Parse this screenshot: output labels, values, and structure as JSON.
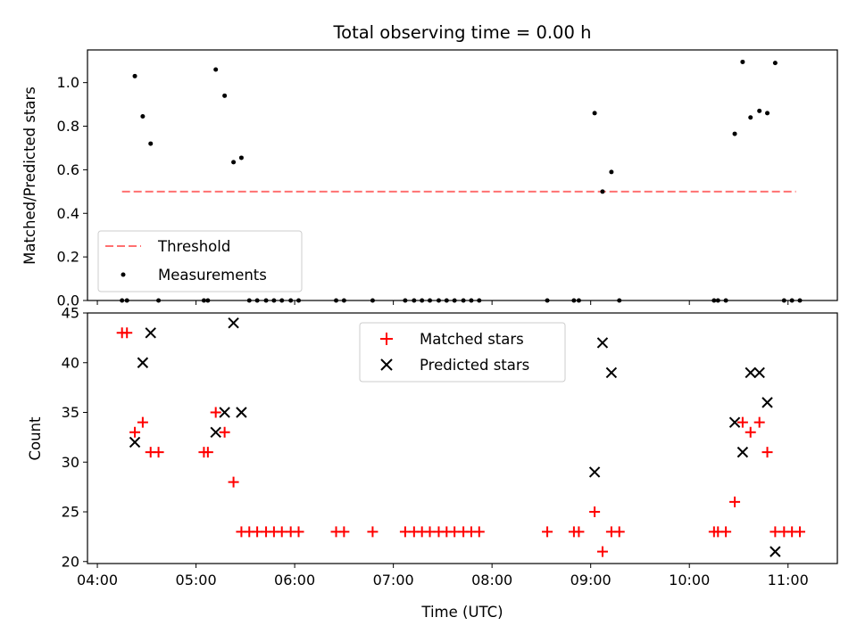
{
  "title": "Total observing time = 0.00 h",
  "colors": {
    "threshold": "#ff7070",
    "measurement": "#000000",
    "matched": "#ff0000",
    "predicted": "#000000"
  },
  "chart_data": [
    {
      "type": "scatter",
      "panel": "top",
      "title": "Total observing time = 0.00 h",
      "xlabel": "",
      "ylabel": "Matched/Predicted stars",
      "xlim": [
        3.9,
        11.5
      ],
      "ylim": [
        0.0,
        1.15
      ],
      "yticks": [
        0.0,
        0.2,
        0.4,
        0.6,
        0.8,
        1.0
      ],
      "ytick_labels": [
        "0.0",
        "0.2",
        "0.4",
        "0.6",
        "0.8",
        "1.0"
      ],
      "legend_position": "lower-left",
      "threshold": {
        "name": "Threshold",
        "value": 0.5,
        "x_range": [
          4.25,
          11.08
        ],
        "style": "dashed"
      },
      "series": [
        {
          "name": "Measurements",
          "marker": "dot",
          "points": [
            [
              4.25,
              0.0
            ],
            [
              4.3,
              0.0
            ],
            [
              4.38,
              1.03
            ],
            [
              4.46,
              0.845
            ],
            [
              4.54,
              0.72
            ],
            [
              4.62,
              0.0
            ],
            [
              5.08,
              0.0
            ],
            [
              5.12,
              0.0
            ],
            [
              5.2,
              1.06
            ],
            [
              5.29,
              0.94
            ],
            [
              5.38,
              0.635
            ],
            [
              5.46,
              0.655
            ],
            [
              5.54,
              0.0
            ],
            [
              5.62,
              0.0
            ],
            [
              5.71,
              0.0
            ],
            [
              5.79,
              0.0
            ],
            [
              5.87,
              0.0
            ],
            [
              5.96,
              0.0
            ],
            [
              6.04,
              0.0
            ],
            [
              6.42,
              0.0
            ],
            [
              6.5,
              0.0
            ],
            [
              6.79,
              0.0
            ],
            [
              7.12,
              0.0
            ],
            [
              7.21,
              0.0
            ],
            [
              7.29,
              0.0
            ],
            [
              7.37,
              0.0
            ],
            [
              7.46,
              0.0
            ],
            [
              7.54,
              0.0
            ],
            [
              7.62,
              0.0
            ],
            [
              7.71,
              0.0
            ],
            [
              7.79,
              0.0
            ],
            [
              7.87,
              0.0
            ],
            [
              8.56,
              0.0
            ],
            [
              8.83,
              0.0
            ],
            [
              8.88,
              0.0
            ],
            [
              9.04,
              0.86
            ],
            [
              9.12,
              0.5
            ],
            [
              9.21,
              0.59
            ],
            [
              9.29,
              0.0
            ],
            [
              10.25,
              0.0
            ],
            [
              10.29,
              0.0
            ],
            [
              10.37,
              0.0
            ],
            [
              10.46,
              0.765
            ],
            [
              10.54,
              1.095
            ],
            [
              10.62,
              0.84
            ],
            [
              10.71,
              0.87
            ],
            [
              10.79,
              0.86
            ],
            [
              10.87,
              1.09
            ],
            [
              10.96,
              0.0
            ],
            [
              11.04,
              0.0
            ],
            [
              11.12,
              0.0
            ]
          ]
        }
      ]
    },
    {
      "type": "scatter",
      "panel": "bottom",
      "xlabel": "Time (UTC)",
      "ylabel": "Count",
      "xlim": [
        3.9,
        11.5
      ],
      "ylim": [
        19.8,
        45.0
      ],
      "xticks": [
        4,
        5,
        6,
        7,
        8,
        9,
        10,
        11
      ],
      "xtick_labels": [
        "04:00",
        "05:00",
        "06:00",
        "07:00",
        "08:00",
        "09:00",
        "10:00",
        "11:00"
      ],
      "yticks": [
        20,
        25,
        30,
        35,
        40,
        45
      ],
      "ytick_labels": [
        "20",
        "25",
        "30",
        "35",
        "40",
        "45"
      ],
      "legend_position": "upper-center",
      "series": [
        {
          "name": "Matched stars",
          "marker": "plus",
          "points": [
            [
              4.25,
              43
            ],
            [
              4.3,
              43
            ],
            [
              4.38,
              33
            ],
            [
              4.46,
              34
            ],
            [
              4.54,
              31
            ],
            [
              4.62,
              31
            ],
            [
              5.08,
              31
            ],
            [
              5.12,
              31
            ],
            [
              5.2,
              35
            ],
            [
              5.29,
              33
            ],
            [
              5.38,
              28
            ],
            [
              5.46,
              23
            ],
            [
              5.54,
              23
            ],
            [
              5.62,
              23
            ],
            [
              5.71,
              23
            ],
            [
              5.79,
              23
            ],
            [
              5.87,
              23
            ],
            [
              5.96,
              23
            ],
            [
              6.04,
              23
            ],
            [
              6.42,
              23
            ],
            [
              6.5,
              23
            ],
            [
              6.79,
              23
            ],
            [
              7.12,
              23
            ],
            [
              7.21,
              23
            ],
            [
              7.29,
              23
            ],
            [
              7.37,
              23
            ],
            [
              7.46,
              23
            ],
            [
              7.54,
              23
            ],
            [
              7.62,
              23
            ],
            [
              7.71,
              23
            ],
            [
              7.79,
              23
            ],
            [
              7.87,
              23
            ],
            [
              8.56,
              23
            ],
            [
              8.83,
              23
            ],
            [
              8.88,
              23
            ],
            [
              9.04,
              25
            ],
            [
              9.12,
              21
            ],
            [
              9.21,
              23
            ],
            [
              9.29,
              23
            ],
            [
              10.25,
              23
            ],
            [
              10.29,
              23
            ],
            [
              10.37,
              23
            ],
            [
              10.46,
              26
            ],
            [
              10.54,
              34
            ],
            [
              10.62,
              33
            ],
            [
              10.71,
              34
            ],
            [
              10.79,
              31
            ],
            [
              10.87,
              23
            ],
            [
              10.96,
              23
            ],
            [
              11.04,
              23
            ],
            [
              11.12,
              23
            ]
          ]
        },
        {
          "name": "Predicted stars",
          "marker": "x",
          "points": [
            [
              4.38,
              32
            ],
            [
              4.46,
              40
            ],
            [
              4.54,
              43
            ],
            [
              5.2,
              33
            ],
            [
              5.29,
              35
            ],
            [
              5.38,
              44
            ],
            [
              5.46,
              35
            ],
            [
              9.04,
              29
            ],
            [
              9.12,
              42
            ],
            [
              9.21,
              39
            ],
            [
              10.46,
              34
            ],
            [
              10.54,
              31
            ],
            [
              10.62,
              39
            ],
            [
              10.71,
              39
            ],
            [
              10.79,
              36
            ],
            [
              10.87,
              21
            ]
          ]
        }
      ]
    }
  ]
}
